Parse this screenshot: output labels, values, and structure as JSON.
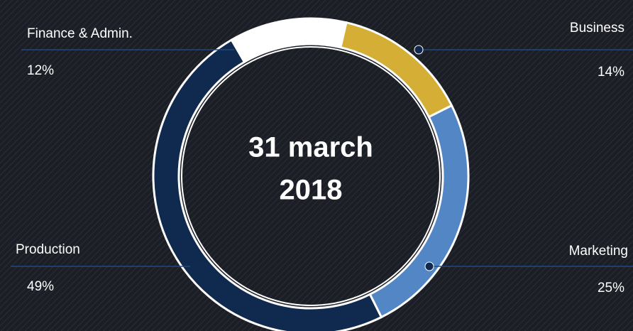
{
  "chart_data": {
    "type": "donut",
    "center_text": [
      "31 march",
      "2018"
    ],
    "categories": [
      "Business",
      "Marketing",
      "Production",
      "Finance & Admin."
    ],
    "values": [
      14,
      25,
      49,
      12
    ],
    "value_labels": [
      "14%",
      "25%",
      "49%",
      "12%"
    ],
    "colors": [
      "#d4ae35",
      "#5386c4",
      "#0f2a4e",
      "#ffffff"
    ]
  }
}
